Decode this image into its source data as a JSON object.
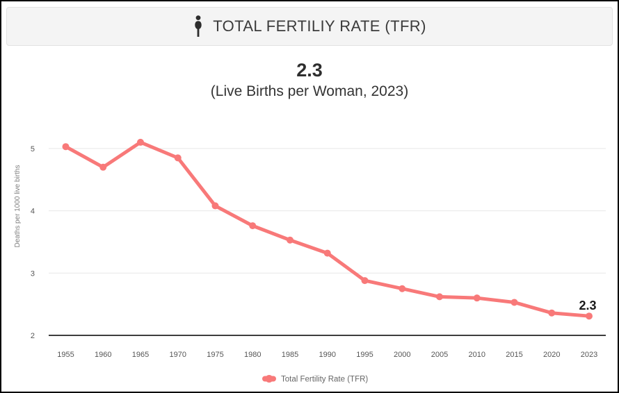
{
  "header": {
    "title": "TOTAL FERTILIY RATE (TFR)",
    "icon": "person-icon"
  },
  "summary": {
    "value": "2.3",
    "caption": "(Live Births per Woman, 2023)"
  },
  "chart_data": {
    "type": "line",
    "categories": [
      "1955",
      "1960",
      "1965",
      "1970",
      "1975",
      "1980",
      "1985",
      "1990",
      "1995",
      "2000",
      "2005",
      "2010",
      "2015",
      "2020",
      "2023"
    ],
    "series": [
      {
        "name": "Total Fertility Rate (TFR)",
        "values": [
          5.03,
          4.7,
          5.1,
          4.85,
          4.08,
          3.76,
          3.53,
          3.32,
          2.88,
          2.75,
          2.62,
          2.6,
          2.53,
          2.36,
          2.31
        ],
        "color": "#f87979"
      }
    ],
    "title": "",
    "xlabel": "",
    "ylabel": "Deaths per 1000 live births",
    "yticks": [
      2,
      3,
      4,
      5
    ],
    "ylim": [
      2,
      5.35
    ],
    "grid": true,
    "legend_position": "bottom",
    "annotation": {
      "text": "2.3",
      "category": "2023"
    }
  },
  "colors": {
    "line": "#f87979",
    "header_bg": "#f4f4f4",
    "header_border": "#e2e2e2",
    "grid": "#e7e7e7",
    "axis": "#3c3c3c",
    "tick_text": "#555555",
    "axis_title_text": "#808080",
    "legend_text": "#666666",
    "annotation_text": "#1a1a1a"
  }
}
